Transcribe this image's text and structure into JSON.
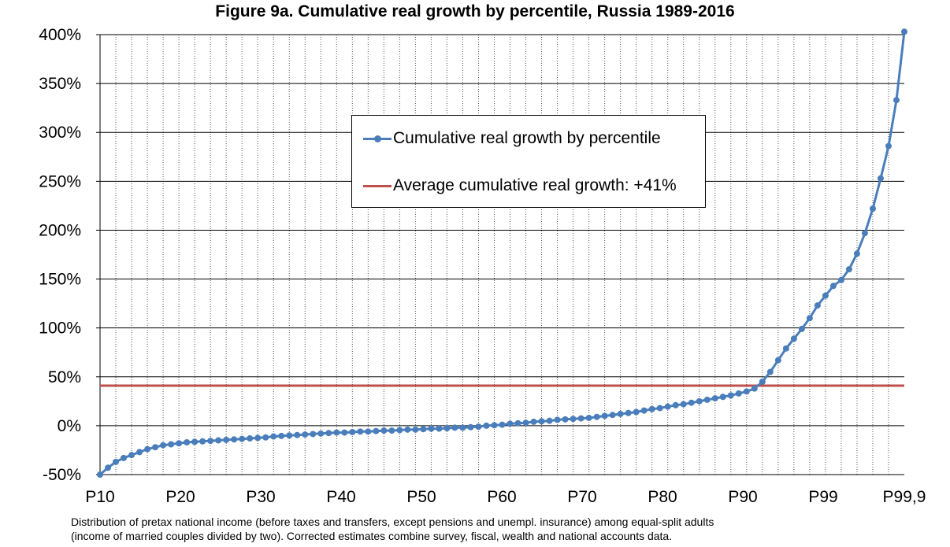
{
  "chart_data": {
    "type": "line",
    "title": "Figure 9a. Cumulative real growth by percentile, Russia 1989-2016",
    "xlabel": "",
    "ylabel": "",
    "ylim": [
      -50,
      400
    ],
    "y_ticks": [
      -50,
      0,
      50,
      100,
      150,
      200,
      250,
      300,
      350,
      400
    ],
    "y_tick_labels": [
      "-50%",
      "0%",
      "50%",
      "100%",
      "150%",
      "200%",
      "250%",
      "300%",
      "350%",
      "400%"
    ],
    "x_tick_labels": [
      "P10",
      "P20",
      "P30",
      "P40",
      "P50",
      "P60",
      "P70",
      "P80",
      "P90",
      "P99",
      "P99,9"
    ],
    "grid": true,
    "legend_position": "top-center",
    "series": [
      {
        "name": "Cumulative real growth by percentile",
        "color": "#4a7ebb",
        "marker": "circle",
        "values": [
          -50,
          -43,
          -37,
          -33,
          -30,
          -27,
          -24,
          -22,
          -20,
          -19,
          -18,
          -17,
          -16.5,
          -16,
          -15.5,
          -15,
          -14.5,
          -14,
          -13.5,
          -13,
          -12.5,
          -12,
          -11,
          -10.5,
          -10,
          -9.5,
          -9,
          -8.5,
          -8,
          -7.5,
          -7,
          -7,
          -6.5,
          -6,
          -6,
          -5.5,
          -5,
          -5,
          -4.5,
          -4,
          -4,
          -3.5,
          -3,
          -3,
          -2.5,
          -2,
          -2,
          -1.5,
          -1,
          0,
          0.5,
          1,
          2,
          2.5,
          3,
          4,
          4.5,
          5,
          6,
          6.5,
          7,
          7.5,
          8,
          9,
          10,
          11,
          12,
          13,
          14,
          15.5,
          17,
          18,
          19.5,
          21,
          22,
          23.5,
          25,
          26.5,
          28,
          29.5,
          31,
          33,
          35,
          38,
          45,
          55,
          67,
          79,
          89,
          99,
          110,
          123,
          133,
          143,
          149,
          160,
          176,
          197,
          222,
          253,
          286,
          333,
          403
        ]
      }
    ],
    "reference_lines": [
      {
        "name": "Average cumulative real growth: +41%",
        "value": 41,
        "color": "#c0504d"
      }
    ]
  },
  "captions": {
    "line1": "Distribution of pretax national income (before taxes and transfers, except pensions and unempl. insurance) among equal-split adults",
    "line2": "(income of married couples divided by two). Corrected estimates combine survey, fiscal, wealth and national accounts data."
  }
}
